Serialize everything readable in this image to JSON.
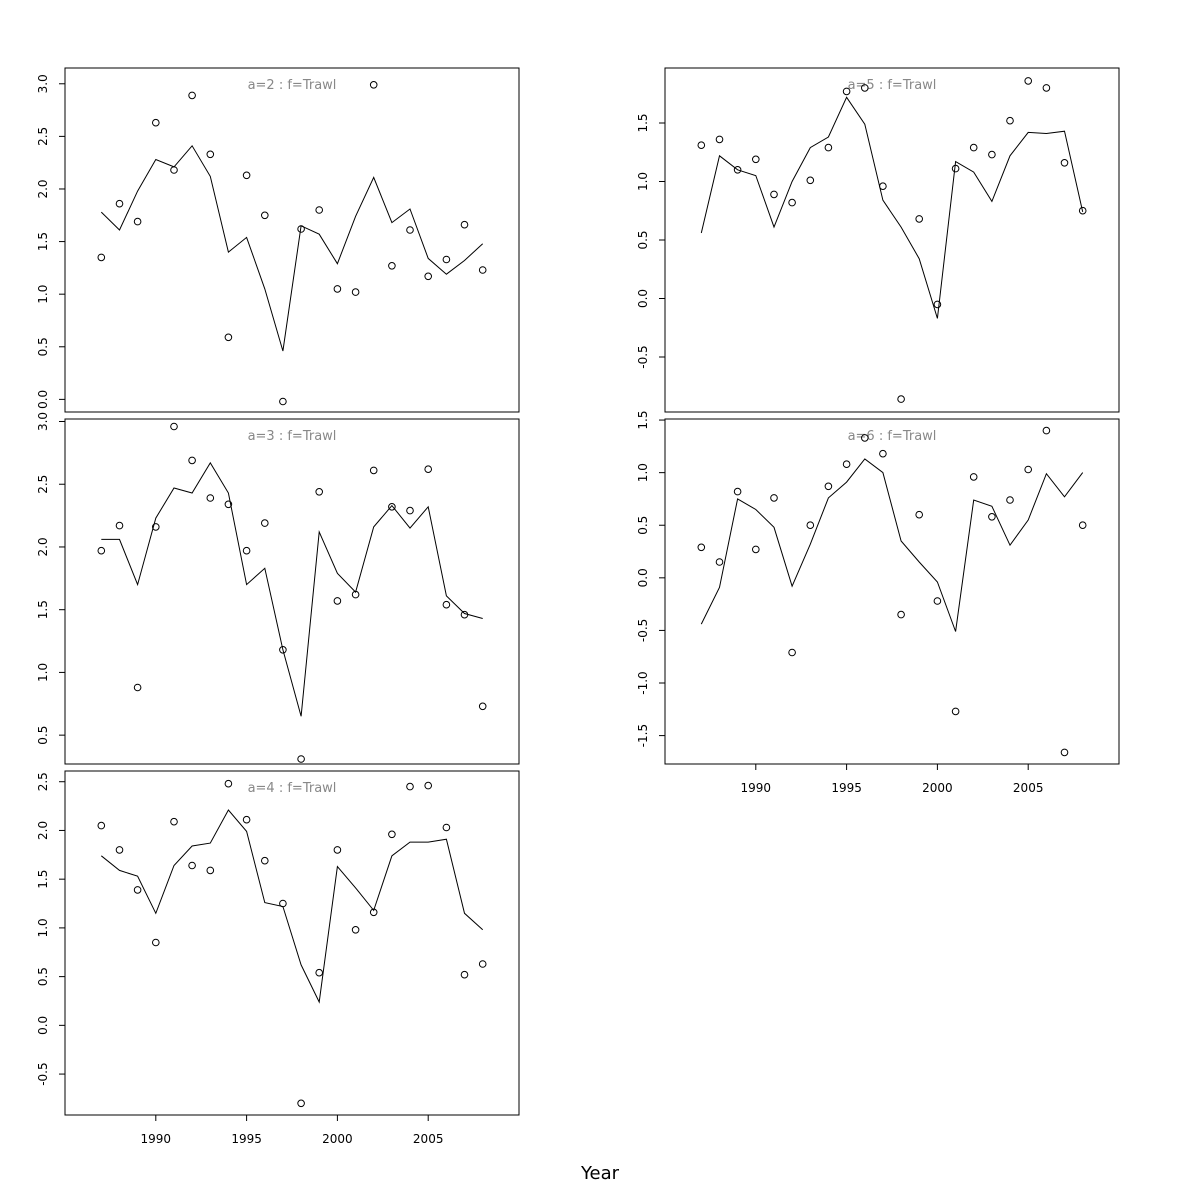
{
  "figure": {
    "xlabel": "Year"
  },
  "chart_data": [
    {
      "type": "line",
      "title": "a=2  :  f=Trawl",
      "xlabel": "",
      "ylabel": "",
      "xlim": [
        1985,
        2010
      ],
      "ylim": [
        -0.12,
        3.15
      ],
      "yticks": [
        0.0,
        0.5,
        1.0,
        1.5,
        2.0,
        2.5,
        3.0
      ],
      "xticks": [],
      "x": [
        1987,
        1988,
        1989,
        1990,
        1991,
        1992,
        1993,
        1994,
        1995,
        1996,
        1997,
        1998,
        1999,
        2000,
        2001,
        2002,
        2003,
        2004,
        2005,
        2006,
        2007,
        2008
      ],
      "series": [
        {
          "kind": "points",
          "values": [
            1.35,
            1.86,
            1.69,
            2.63,
            2.18,
            2.89,
            2.33,
            0.59,
            2.13,
            1.75,
            -0.02,
            1.62,
            1.8,
            1.05,
            1.02,
            2.99,
            1.27,
            1.61,
            1.17,
            1.33,
            1.66,
            1.23
          ]
        },
        {
          "kind": "line",
          "values": [
            1.78,
            1.61,
            1.98,
            2.28,
            2.21,
            2.41,
            2.12,
            1.4,
            1.54,
            1.05,
            0.46,
            1.65,
            1.57,
            1.29,
            1.74,
            2.11,
            1.68,
            1.81,
            1.34,
            1.19,
            1.32,
            1.48
          ]
        }
      ]
    },
    {
      "type": "line",
      "title": "a=3  :  f=Trawl",
      "xlabel": "",
      "ylabel": "",
      "xlim": [
        1985,
        2010
      ],
      "ylim": [
        0.27,
        3.02
      ],
      "yticks": [
        0.5,
        1.0,
        1.5,
        2.0,
        2.5,
        3.0
      ],
      "xticks": [],
      "x": [
        1987,
        1988,
        1989,
        1990,
        1991,
        1992,
        1993,
        1994,
        1995,
        1996,
        1997,
        1998,
        1999,
        2000,
        2001,
        2002,
        2003,
        2004,
        2005,
        2006,
        2007,
        2008
      ],
      "series": [
        {
          "kind": "points",
          "values": [
            1.97,
            2.17,
            0.88,
            2.16,
            2.96,
            2.69,
            2.39,
            2.34,
            1.97,
            2.19,
            1.18,
            0.31,
            2.44,
            1.57,
            1.62,
            2.61,
            2.32,
            2.29,
            2.62,
            1.54,
            1.46,
            0.73
          ]
        },
        {
          "kind": "line",
          "values": [
            2.06,
            2.06,
            1.7,
            2.23,
            2.47,
            2.43,
            2.67,
            2.43,
            1.7,
            1.83,
            1.18,
            0.65,
            2.12,
            1.79,
            1.64,
            2.16,
            2.33,
            2.15,
            2.32,
            1.61,
            1.47,
            1.43
          ]
        }
      ]
    },
    {
      "type": "line",
      "title": "a=4  :  f=Trawl",
      "xlabel": "",
      "ylabel": "",
      "xlim": [
        1985,
        2010
      ],
      "ylim": [
        -0.92,
        2.61
      ],
      "yticks": [
        -0.5,
        0.0,
        0.5,
        1.0,
        1.5,
        2.0,
        2.5
      ],
      "xticks": [
        1990,
        1995,
        2000,
        2005
      ],
      "x": [
        1987,
        1988,
        1989,
        1990,
        1991,
        1992,
        1993,
        1994,
        1995,
        1996,
        1997,
        1998,
        1999,
        2000,
        2001,
        2002,
        2003,
        2004,
        2005,
        2006,
        2007,
        2008
      ],
      "series": [
        {
          "kind": "points",
          "values": [
            2.05,
            1.8,
            1.39,
            0.85,
            2.09,
            1.64,
            1.59,
            2.48,
            2.11,
            1.69,
            1.25,
            -0.8,
            0.54,
            1.8,
            0.98,
            1.16,
            1.96,
            2.45,
            2.46,
            2.03,
            0.52,
            0.63
          ]
        },
        {
          "kind": "line",
          "values": [
            1.74,
            1.59,
            1.53,
            1.15,
            1.64,
            1.84,
            1.87,
            2.21,
            1.99,
            1.26,
            1.22,
            0.62,
            0.24,
            1.63,
            1.41,
            1.18,
            1.74,
            1.88,
            1.88,
            1.91,
            1.15,
            0.98
          ]
        }
      ]
    },
    {
      "type": "line",
      "title": "a=5  :  f=Trawl",
      "xlabel": "",
      "ylabel": "",
      "xlim": [
        1985,
        2010
      ],
      "ylim": [
        -0.97,
        1.97
      ],
      "yticks": [
        -0.5,
        0.0,
        0.5,
        1.0,
        1.5
      ],
      "xticks": [],
      "x": [
        1987,
        1988,
        1989,
        1990,
        1991,
        1992,
        1993,
        1994,
        1995,
        1996,
        1997,
        1998,
        1999,
        2000,
        2001,
        2002,
        2003,
        2004,
        2005,
        2006,
        2007,
        2008
      ],
      "series": [
        {
          "kind": "points",
          "values": [
            1.31,
            1.36,
            1.1,
            1.19,
            0.89,
            0.82,
            1.01,
            1.29,
            1.77,
            1.8,
            0.96,
            -0.86,
            0.68,
            -0.05,
            1.11,
            1.29,
            1.23,
            1.52,
            1.86,
            1.8,
            1.16,
            0.75
          ]
        },
        {
          "kind": "line",
          "values": [
            0.56,
            1.22,
            1.1,
            1.05,
            0.61,
            1.0,
            1.29,
            1.38,
            1.72,
            1.49,
            0.84,
            0.61,
            0.34,
            -0.17,
            1.17,
            1.08,
            0.83,
            1.22,
            1.42,
            1.41,
            1.43,
            0.74
          ]
        }
      ]
    },
    {
      "type": "line",
      "title": "a=6  :  f=Trawl",
      "xlabel": "",
      "ylabel": "",
      "xlim": [
        1985,
        2010
      ],
      "ylim": [
        -1.77,
        1.51
      ],
      "yticks": [
        -1.5,
        -1.0,
        -0.5,
        0.0,
        0.5,
        1.0,
        1.5
      ],
      "xticks": [
        1990,
        1995,
        2000,
        2005
      ],
      "x": [
        1987,
        1988,
        1989,
        1990,
        1991,
        1992,
        1993,
        1994,
        1995,
        1996,
        1997,
        1998,
        1999,
        2000,
        2001,
        2002,
        2003,
        2004,
        2005,
        2006,
        2007,
        2008
      ],
      "series": [
        {
          "kind": "points",
          "values": [
            0.29,
            0.15,
            0.82,
            0.27,
            0.76,
            -0.71,
            0.5,
            0.87,
            1.08,
            1.33,
            1.18,
            -0.35,
            0.6,
            -0.22,
            -1.27,
            0.96,
            0.58,
            0.74,
            1.03,
            1.4,
            -1.66,
            0.5
          ]
        },
        {
          "kind": "line",
          "values": [
            -0.44,
            -0.09,
            0.75,
            0.65,
            0.48,
            -0.08,
            0.32,
            0.76,
            0.91,
            1.13,
            1.0,
            0.35,
            0.15,
            -0.04,
            -0.51,
            0.74,
            0.68,
            0.31,
            0.55,
            0.99,
            0.77,
            1.0
          ]
        }
      ]
    }
  ]
}
